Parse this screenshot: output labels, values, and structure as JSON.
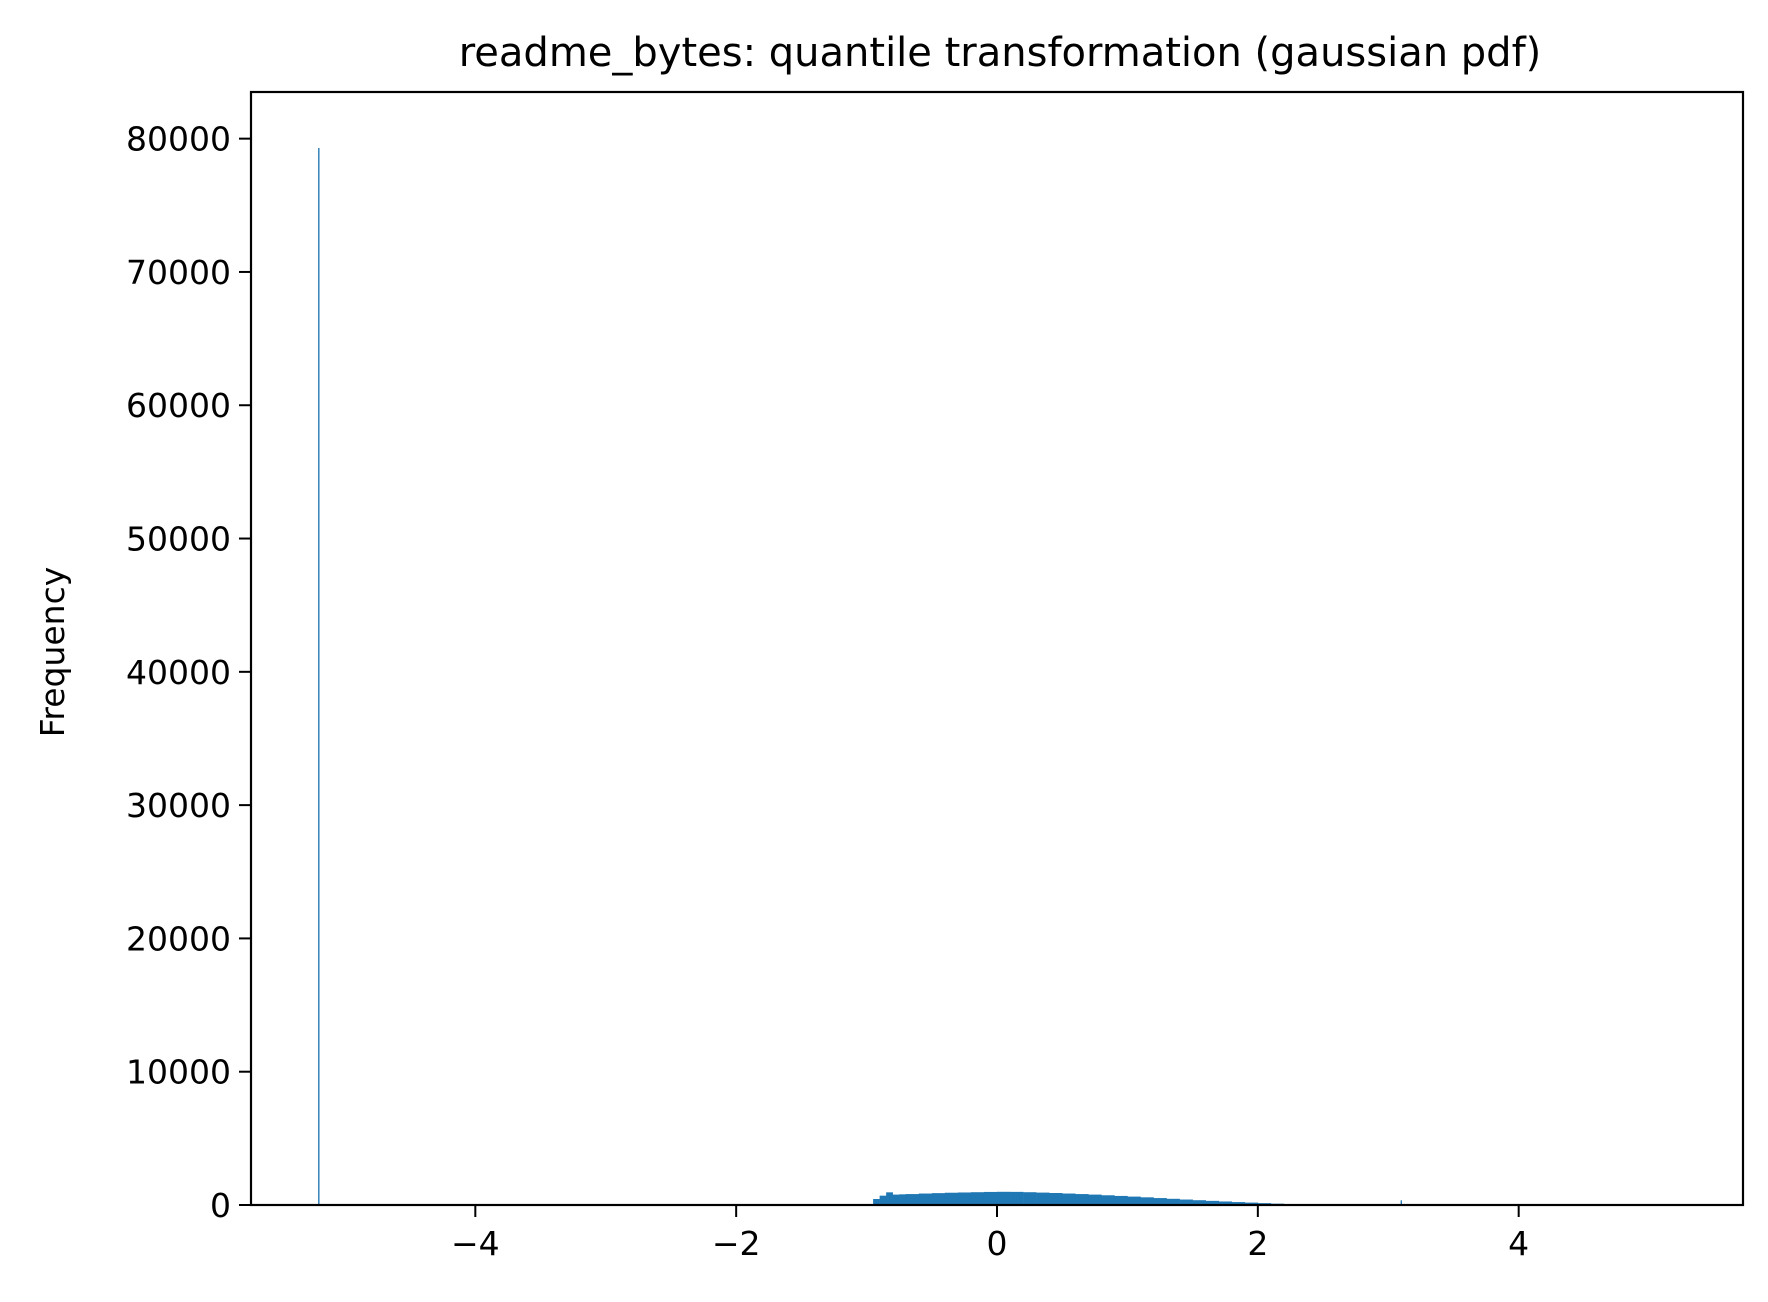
{
  "chart_data": {
    "type": "histogram",
    "title": "readme_bytes: quantile transformation (gaussian pdf)",
    "xlabel": "",
    "ylabel": "Frequency",
    "xlim": [
      -5.72,
      5.72
    ],
    "ylim": [
      0,
      83500
    ],
    "x_ticks": [
      -4,
      -2,
      0,
      2,
      4
    ],
    "x_tick_labels": [
      "−4",
      "−2",
      "0",
      "2",
      "4"
    ],
    "y_ticks": [
      0,
      10000,
      20000,
      30000,
      40000,
      50000,
      60000,
      70000,
      80000
    ],
    "y_tick_labels": [
      "0",
      "10000",
      "20000",
      "30000",
      "40000",
      "50000",
      "60000",
      "70000",
      "80000"
    ],
    "grid": false,
    "bar_color": "#1f77b4",
    "bin_width": 0.0104,
    "spike": {
      "x": -5.2,
      "value": 79300
    },
    "outlier_bins": [
      {
        "x": 3.1,
        "value": 350
      }
    ],
    "bins": [
      {
        "x": -0.95,
        "value": 450
      },
      {
        "x": -0.9,
        "value": 700
      },
      {
        "x": -0.85,
        "value": 950
      },
      {
        "x": -0.8,
        "value": 780
      },
      {
        "x": -0.75,
        "value": 800
      },
      {
        "x": -0.7,
        "value": 820
      },
      {
        "x": -0.6,
        "value": 860
      },
      {
        "x": -0.5,
        "value": 890
      },
      {
        "x": -0.4,
        "value": 920
      },
      {
        "x": -0.3,
        "value": 940
      },
      {
        "x": -0.2,
        "value": 960
      },
      {
        "x": -0.1,
        "value": 980
      },
      {
        "x": 0.0,
        "value": 990
      },
      {
        "x": 0.1,
        "value": 985
      },
      {
        "x": 0.2,
        "value": 960
      },
      {
        "x": 0.3,
        "value": 930
      },
      {
        "x": 0.4,
        "value": 900
      },
      {
        "x": 0.5,
        "value": 860
      },
      {
        "x": 0.6,
        "value": 820
      },
      {
        "x": 0.7,
        "value": 780
      },
      {
        "x": 0.8,
        "value": 730
      },
      {
        "x": 0.9,
        "value": 680
      },
      {
        "x": 1.0,
        "value": 630
      },
      {
        "x": 1.1,
        "value": 575
      },
      {
        "x": 1.2,
        "value": 520
      },
      {
        "x": 1.3,
        "value": 465
      },
      {
        "x": 1.4,
        "value": 410
      },
      {
        "x": 1.5,
        "value": 360
      },
      {
        "x": 1.6,
        "value": 310
      },
      {
        "x": 1.7,
        "value": 265
      },
      {
        "x": 1.8,
        "value": 220
      },
      {
        "x": 1.9,
        "value": 180
      },
      {
        "x": 2.0,
        "value": 140
      },
      {
        "x": 2.1,
        "value": 100
      },
      {
        "x": 2.2,
        "value": 60
      },
      {
        "x": 2.3,
        "value": 30
      },
      {
        "x": 2.5,
        "value": 10
      }
    ]
  }
}
